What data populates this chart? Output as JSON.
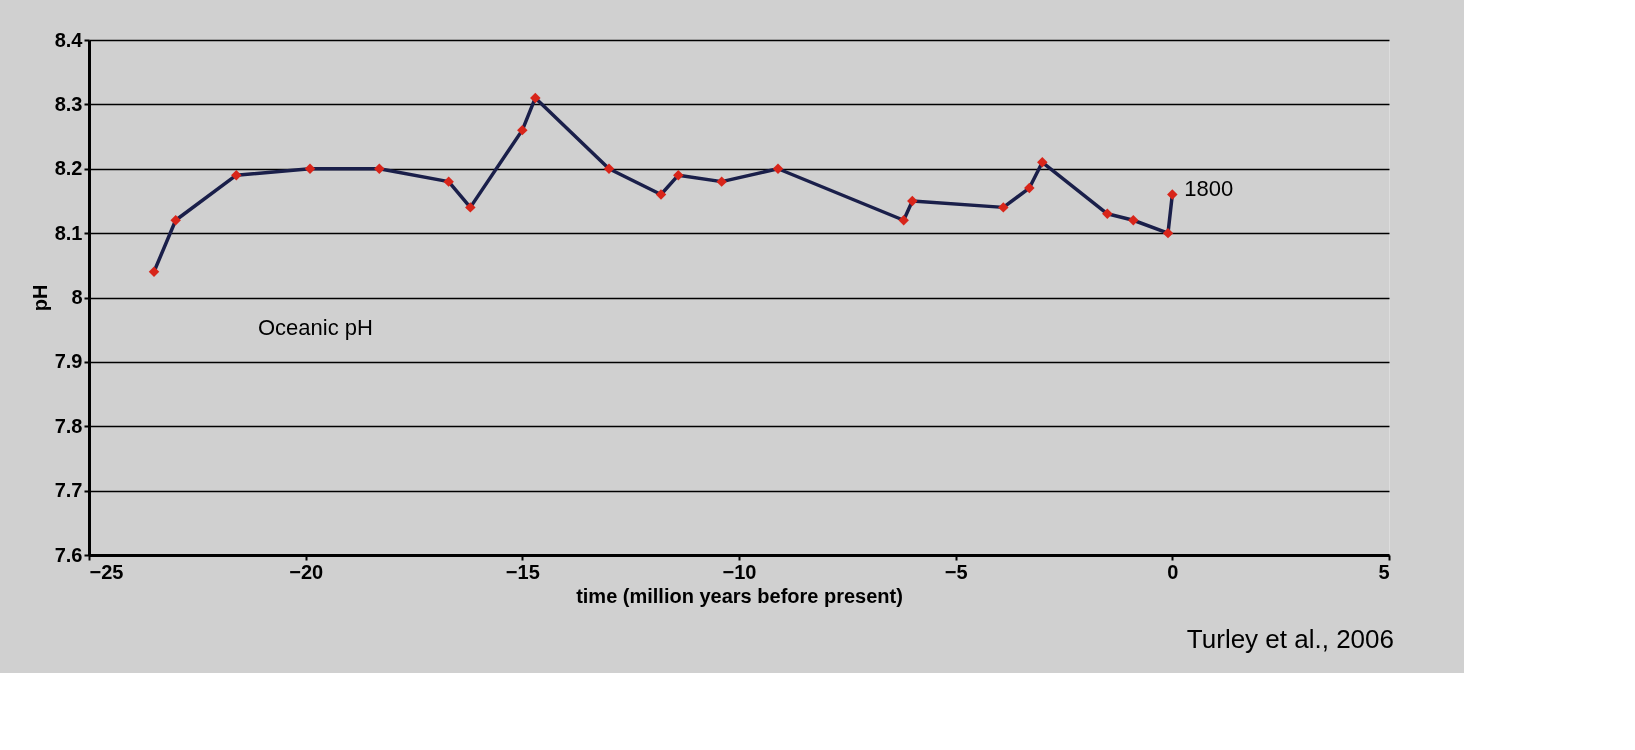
{
  "chart_data": {
    "type": "line",
    "xlabel": "time (million years before present)",
    "ylabel": "pH",
    "x": [
      -23.5,
      -23.0,
      -21.6,
      -19.9,
      -18.3,
      -16.7,
      -16.2,
      -15.0,
      -14.7,
      -13.0,
      -11.8,
      -11.4,
      -10.4,
      -9.1,
      -6.2,
      -6.0,
      -3.9,
      -3.3,
      -3.0,
      -1.5,
      -0.9,
      -0.1,
      0
    ],
    "series": [
      {
        "color": "#1a1f4a",
        "values": [
          8.04,
          8.12,
          8.19,
          8.2,
          8.2,
          8.18,
          8.14,
          8.26,
          8.31,
          8.2,
          8.16,
          8.19,
          8.18,
          8.2,
          8.12,
          8.15,
          8.14,
          8.17,
          8.21,
          8.13,
          8.12,
          8.1,
          8.16
        ]
      }
    ],
    "marker": "diamond",
    "xlim": [
      -25,
      5
    ],
    "xticks": [
      -25,
      -20,
      -15,
      -10,
      -5,
      0,
      5
    ],
    "ylim": [
      7.6,
      8.4
    ],
    "yticks": [
      7.6,
      7.7,
      7.8,
      7.9,
      8,
      8.1,
      8.2,
      8.3,
      8.4
    ],
    "grid": "y",
    "annotations": [
      {
        "text": "1800",
        "x": 0,
        "y": 8.16
      },
      "Oceanic pH",
      "Turley et al., 2006"
    ]
  }
}
